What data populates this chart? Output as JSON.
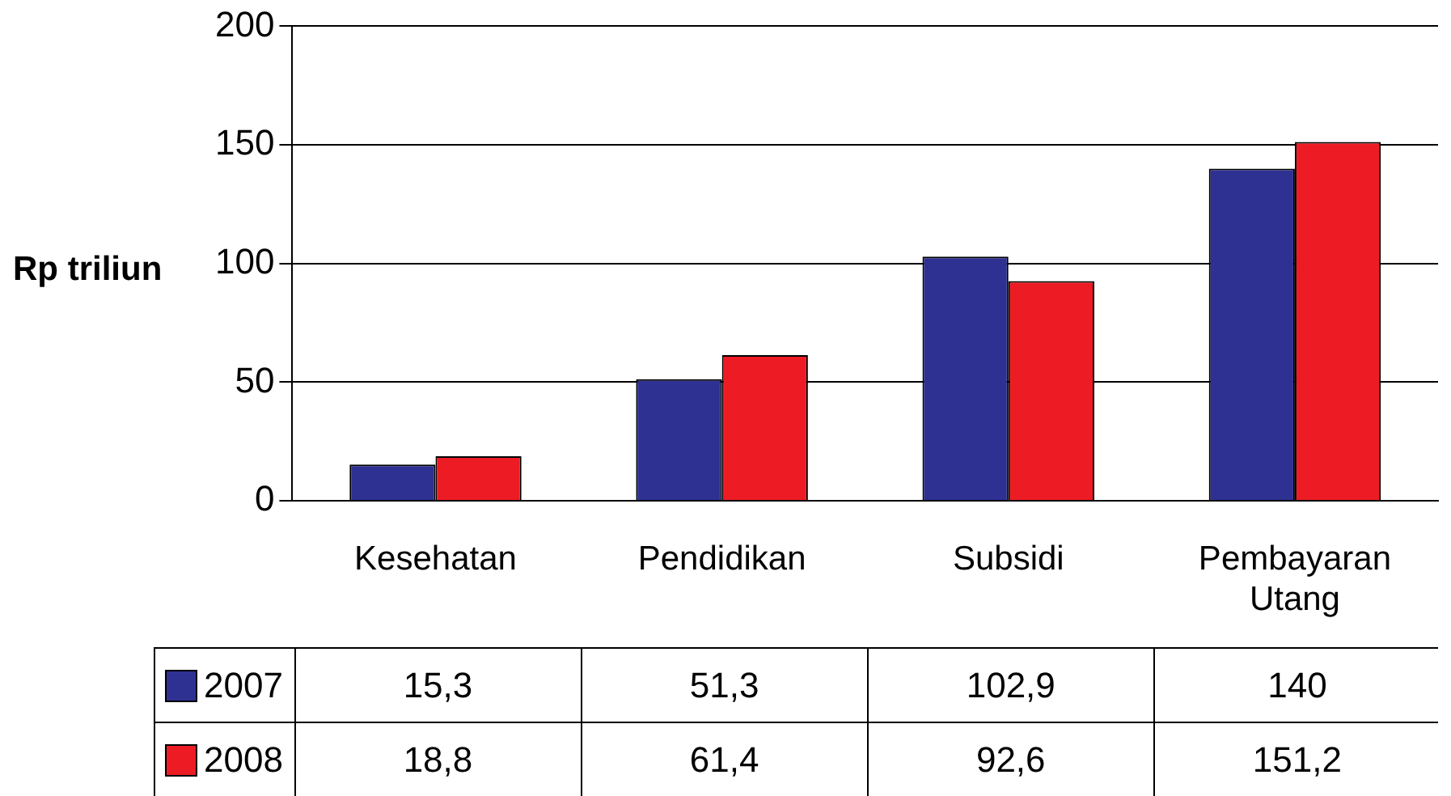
{
  "chart_data": {
    "type": "bar",
    "ylabel": "Rp triliun",
    "categories": [
      "Kesehatan",
      "Pendidikan",
      "Subsidi",
      "Pembayaran Utang"
    ],
    "series": [
      {
        "name": "2007",
        "color": "#2e3192",
        "values": [
          15.3,
          51.3,
          102.9,
          140
        ],
        "value_labels": [
          "15,3",
          "51,3",
          "102,9",
          "140"
        ]
      },
      {
        "name": "2008",
        "color": "#ed1c24",
        "values": [
          18.8,
          61.4,
          92.6,
          151.2
        ],
        "value_labels": [
          "18,8",
          "61,4",
          "92,6",
          "151,2"
        ]
      }
    ],
    "ylim": [
      0,
      200
    ],
    "yticks": [
      0,
      50,
      100,
      150,
      200
    ],
    "grid": "y",
    "legend": "bottom"
  }
}
